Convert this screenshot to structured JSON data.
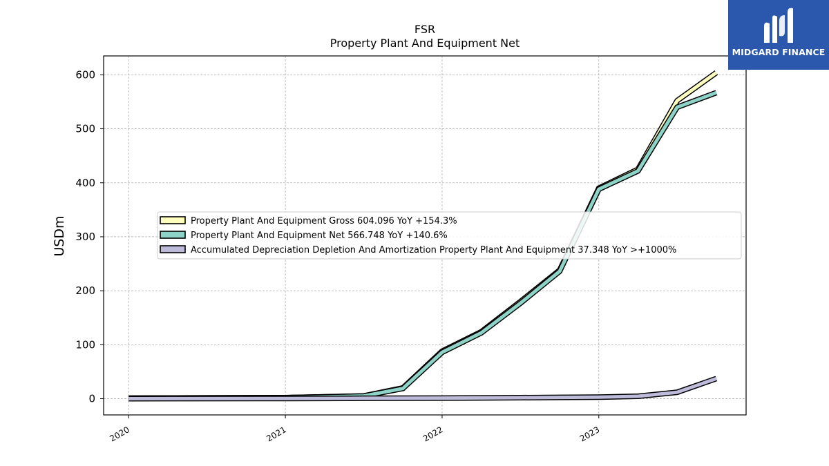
{
  "brand": {
    "name": "MIDGARD FINANCE",
    "bg_color": "#2b58ad"
  },
  "chart_data": {
    "type": "line",
    "title": "FSR",
    "subtitle": "Property Plant And Equipment Net",
    "xlabel": "",
    "ylabel": "USDm",
    "ylim": [
      -30,
      635
    ],
    "xlim": [
      2019.84,
      2023.94
    ],
    "x_ticks": [
      2020,
      2021,
      2022,
      2023
    ],
    "x_tick_labels": [
      "2020",
      "2021",
      "2022",
      "2023"
    ],
    "y_ticks": [
      0,
      100,
      200,
      300,
      400,
      500,
      600
    ],
    "y_tick_labels": [
      "0",
      "100",
      "200",
      "300",
      "400",
      "500",
      "600"
    ],
    "grid": true,
    "legend_position": "center",
    "series": [
      {
        "name": "Property Plant And Equipment Gross",
        "legend_label": "Property Plant And Equipment Gross  604.096 YoY +154.3%",
        "color": "#ffffbf",
        "x": [
          2020.0,
          2021.0,
          2021.5,
          2021.75,
          2022.0,
          2022.25,
          2022.5,
          2022.75,
          2023.0,
          2023.25,
          2023.5,
          2023.75
        ],
        "values": [
          1,
          2,
          5,
          20,
          88,
          124,
          180,
          238,
          390,
          425,
          552,
          604
        ]
      },
      {
        "name": "Property Plant And Equipment Net",
        "legend_label": "Property Plant And Equipment Net  566.748 YoY +140.6%",
        "color": "#8dd3c7",
        "x": [
          2020.0,
          2021.0,
          2021.5,
          2021.75,
          2022.0,
          2022.25,
          2022.5,
          2022.75,
          2023.0,
          2023.25,
          2023.5,
          2023.75
        ],
        "values": [
          1,
          2,
          5,
          19,
          86,
          122,
          177,
          236,
          388,
          422,
          540,
          567
        ]
      },
      {
        "name": "Accumulated Depreciation Depletion And Amortization Property Plant And Equipment",
        "legend_label": "Accumulated Depreciation Depletion And Amortization Property Plant And Equipment  37.348 YoY >+1000%",
        "color": "#bebada",
        "x": [
          2020.0,
          2021.0,
          2021.5,
          2021.75,
          2022.0,
          2022.25,
          2022.5,
          2022.75,
          2023.0,
          2023.25,
          2023.5,
          2023.75
        ],
        "values": [
          0,
          0.5,
          0.8,
          1,
          1.2,
          1.5,
          2,
          2.5,
          3,
          4.5,
          12,
          37.3
        ]
      }
    ]
  }
}
